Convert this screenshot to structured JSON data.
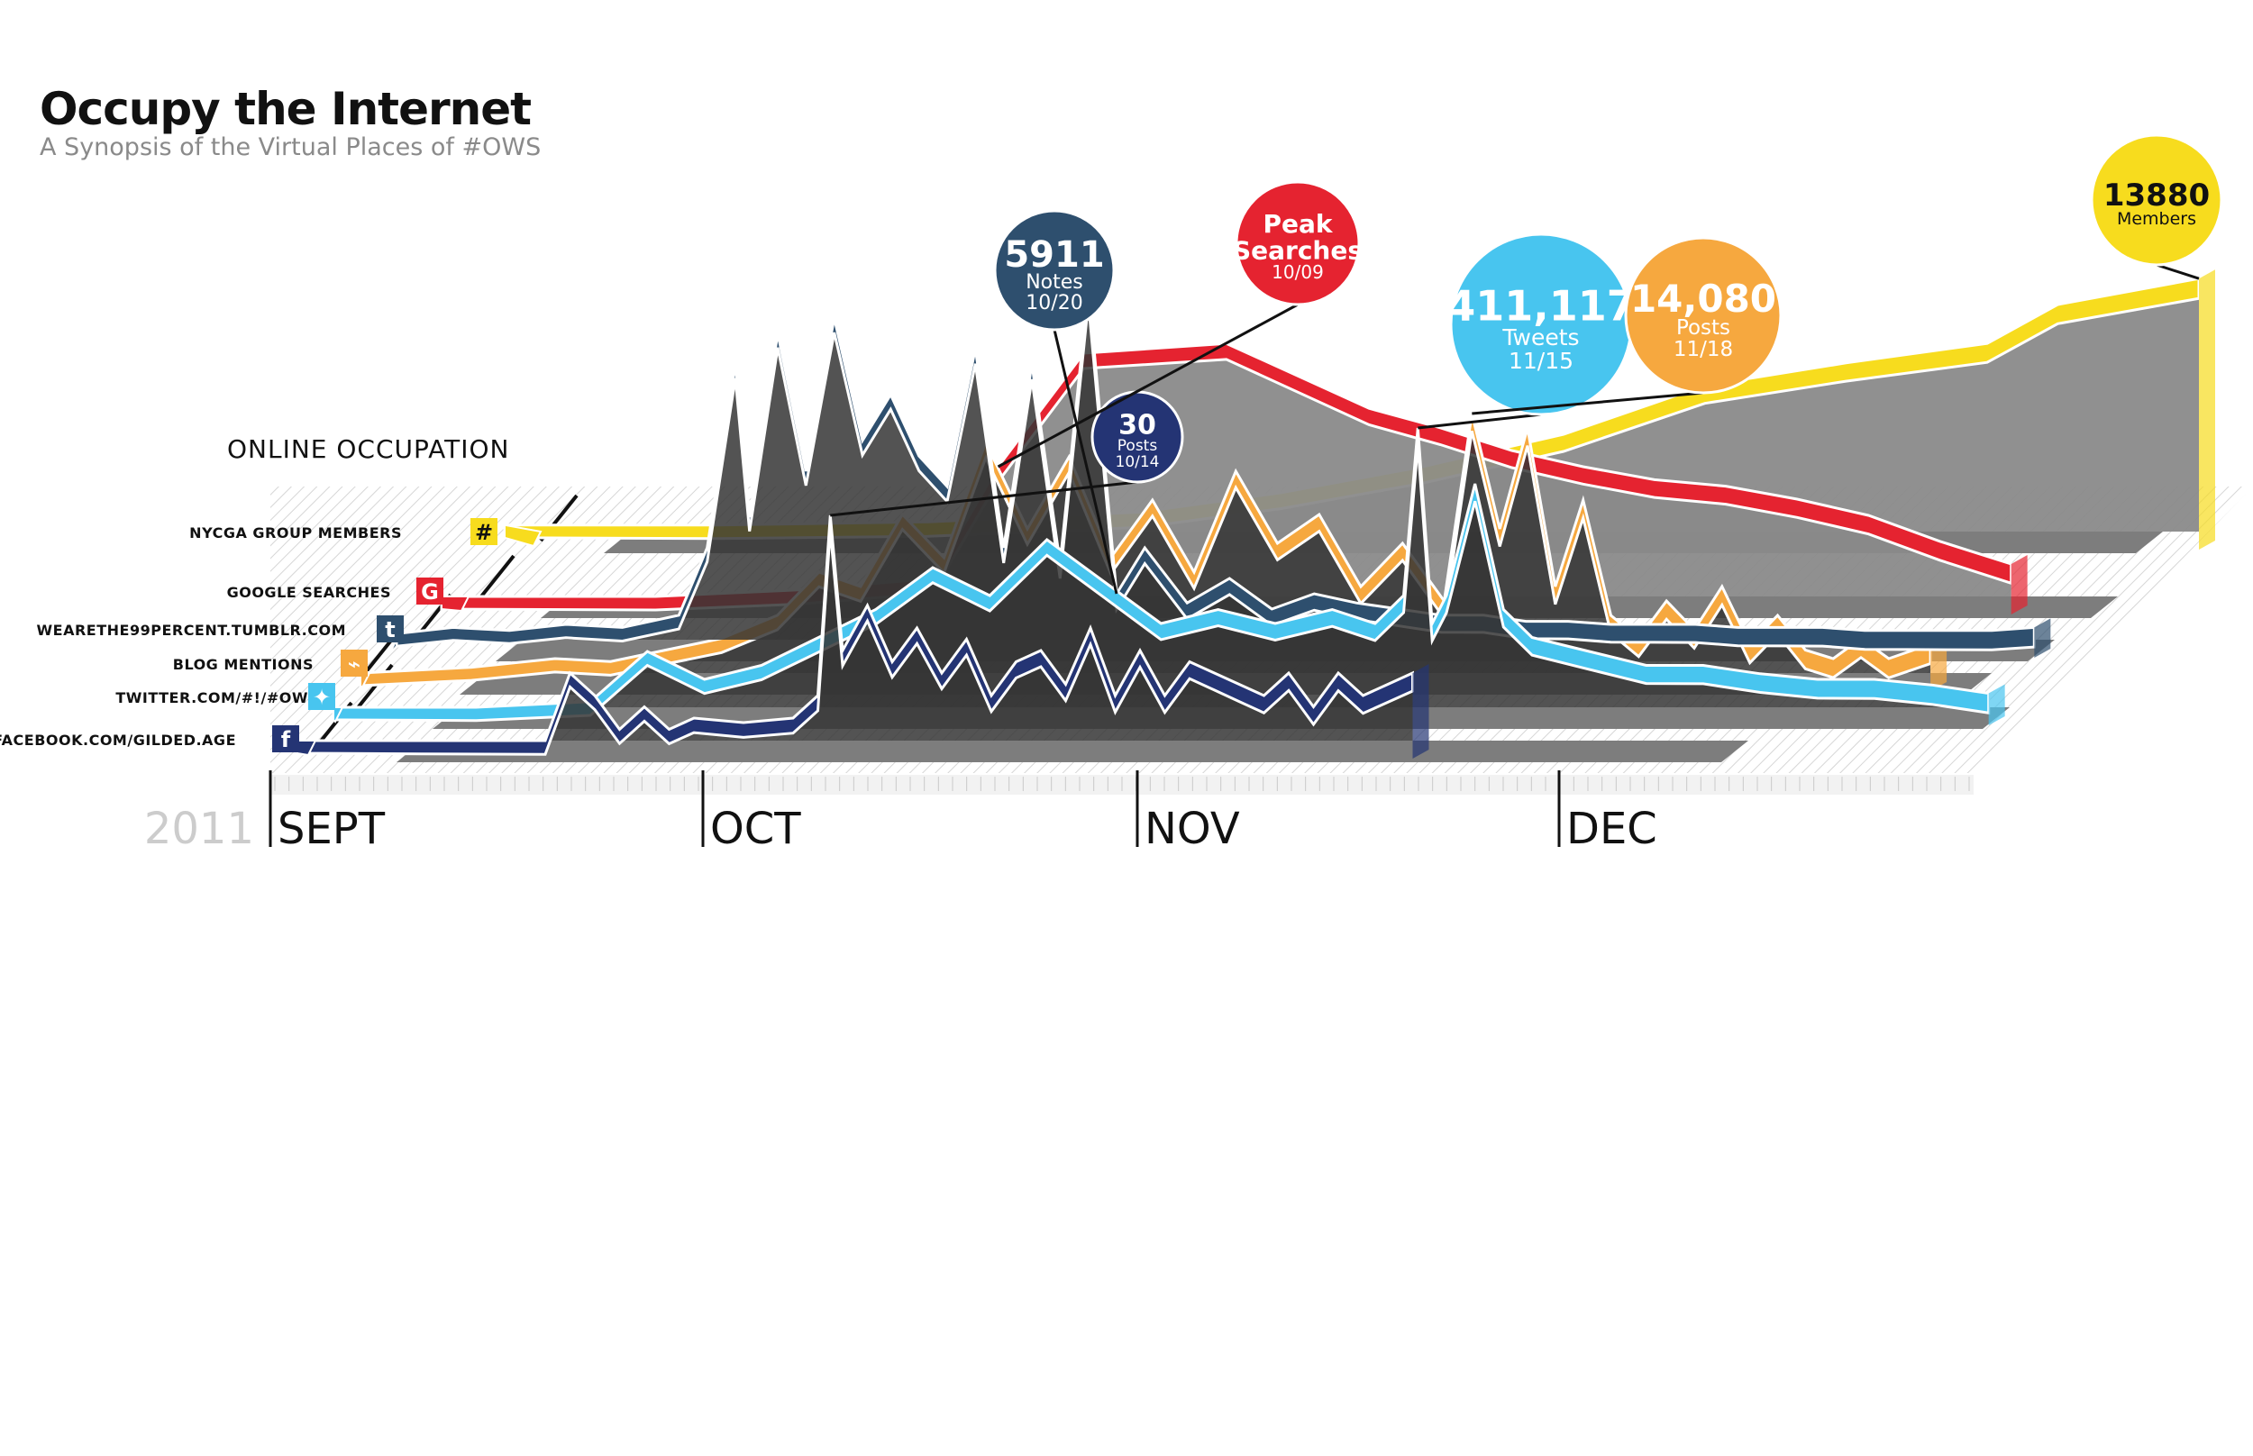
{
  "header": {
    "title": "Occupy the Internet",
    "subtitle": "A Synopsis of the Virtual Places of #OWS"
  },
  "section_label": "ONLINE OCCUPATION",
  "colors": {
    "nycga": "#f7dc1e",
    "google": "#e52330",
    "tumblr": "#2e4f6e",
    "blog": "#f6a83f",
    "twitter": "#48c5ef",
    "facebook": "#243474",
    "floor": "#7d7d7d",
    "shadow": "#2e2e2e"
  },
  "chart_data": {
    "type": "area",
    "title": "Occupy the Internet",
    "subtitle": "A Synopsis of the Virtual Places of #OWS",
    "year": "2011",
    "months": [
      "SEPT",
      "OCT",
      "NOV",
      "DEC"
    ],
    "x_unit": "day index from Sept 1, 2011",
    "xlim": [
      0,
      120
    ],
    "series": [
      {
        "key": "nycga",
        "name": "NYCGA GROUP MEMBERS",
        "icon": "#",
        "x": [
          0,
          15,
          30,
          45,
          55,
          65,
          75,
          85,
          95,
          105,
          110,
          120
        ],
        "values": [
          0.02,
          0.02,
          0.03,
          0.06,
          0.12,
          0.2,
          0.3,
          0.45,
          0.52,
          0.58,
          0.7,
          0.78
        ]
      },
      {
        "key": "google",
        "name": "GOOGLE SEARCHES",
        "icon": "G",
        "x": [
          0,
          15,
          25,
          33,
          35,
          39,
          45,
          55,
          65,
          70,
          75,
          80,
          85,
          90,
          95,
          100,
          105,
          110
        ],
        "values": [
          0.0,
          0.0,
          0.02,
          0.05,
          0.1,
          0.4,
          0.75,
          0.78,
          0.58,
          0.52,
          0.45,
          0.4,
          0.36,
          0.34,
          0.3,
          0.25,
          0.17,
          0.1
        ]
      },
      {
        "key": "tumblr",
        "name": "WEARETHE99PERCENT.TUMBLR.COM",
        "icon": "t",
        "x": [
          0,
          4,
          8,
          12,
          16,
          20,
          22,
          24,
          25,
          27,
          29,
          31,
          33,
          35,
          37,
          39,
          41,
          43,
          45,
          47,
          49,
          51,
          53,
          56,
          59,
          62,
          65,
          68,
          71,
          74,
          77,
          80,
          83,
          86,
          89,
          92,
          95,
          98,
          101,
          104,
          107,
          110,
          113,
          116
        ],
        "values": [
          0.02,
          0.04,
          0.03,
          0.05,
          0.04,
          0.08,
          0.3,
          0.9,
          0.4,
          1.0,
          0.55,
          1.05,
          0.65,
          0.8,
          0.6,
          0.5,
          0.95,
          0.3,
          0.9,
          0.25,
          1.15,
          0.15,
          0.3,
          0.12,
          0.2,
          0.1,
          0.15,
          0.12,
          0.1,
          0.08,
          0.08,
          0.06,
          0.06,
          0.05,
          0.05,
          0.05,
          0.04,
          0.04,
          0.04,
          0.03,
          0.03,
          0.03,
          0.03,
          0.04
        ]
      },
      {
        "key": "blog",
        "name": "BLOG MENTIONS",
        "icon": "rss",
        "x": [
          0,
          8,
          14,
          18,
          22,
          26,
          30,
          33,
          36,
          39,
          42,
          45,
          48,
          51,
          54,
          57,
          60,
          63,
          66,
          69,
          72,
          75,
          78,
          80,
          82,
          84,
          86,
          88,
          90,
          92,
          94,
          96,
          98,
          100,
          102,
          104,
          106,
          108,
          110,
          113
        ],
        "values": [
          0.0,
          0.02,
          0.05,
          0.04,
          0.08,
          0.12,
          0.2,
          0.35,
          0.3,
          0.55,
          0.4,
          0.8,
          0.5,
          0.75,
          0.4,
          0.6,
          0.35,
          0.7,
          0.45,
          0.55,
          0.3,
          0.45,
          0.25,
          0.9,
          0.5,
          0.85,
          0.3,
          0.6,
          0.2,
          0.12,
          0.25,
          0.15,
          0.3,
          0.1,
          0.2,
          0.08,
          0.05,
          0.12,
          0.05,
          0.1
        ]
      },
      {
        "key": "twitter",
        "name": "TWITTER.COM/#!/#OWS",
        "icon": "bird",
        "x": [
          0,
          10,
          18,
          22,
          26,
          30,
          34,
          38,
          42,
          46,
          50,
          54,
          58,
          62,
          66,
          70,
          73,
          75,
          76,
          77,
          78,
          80,
          82,
          84,
          88,
          92,
          96,
          100,
          104,
          108,
          112,
          116
        ],
        "values": [
          0.0,
          0.0,
          0.02,
          0.2,
          0.1,
          0.15,
          0.25,
          0.35,
          0.5,
          0.4,
          0.6,
          0.45,
          0.3,
          0.35,
          0.3,
          0.35,
          0.3,
          0.4,
          1.0,
          0.3,
          0.4,
          0.8,
          0.35,
          0.25,
          0.2,
          0.15,
          0.15,
          0.12,
          0.1,
          0.1,
          0.08,
          0.05
        ]
      },
      {
        "key": "facebook",
        "name": "FACEBOOK.COM/GILDED.AGE",
        "icon": "f",
        "x": [
          0,
          10,
          20,
          22,
          24,
          26,
          28,
          30,
          32,
          36,
          40,
          42,
          43,
          44,
          46,
          48,
          50,
          52,
          54,
          56,
          58,
          60,
          62,
          64,
          66,
          68,
          70,
          72,
          74,
          76,
          78,
          80,
          82,
          84,
          86,
          88,
          90
        ],
        "values": [
          0.0,
          0.0,
          0.0,
          0.3,
          0.2,
          0.05,
          0.15,
          0.05,
          0.1,
          0.08,
          0.1,
          0.2,
          1.0,
          0.4,
          0.6,
          0.35,
          0.5,
          0.3,
          0.45,
          0.2,
          0.35,
          0.4,
          0.25,
          0.5,
          0.2,
          0.4,
          0.2,
          0.35,
          0.3,
          0.25,
          0.2,
          0.3,
          0.15,
          0.3,
          0.2,
          0.25,
          0.3
        ]
      }
    ],
    "annotations": [
      {
        "series": "tumblr",
        "x": 51,
        "lines": [
          "5911",
          "Notes",
          "10/20"
        ]
      },
      {
        "series": "facebook",
        "x": 43,
        "lines": [
          "30",
          "Posts",
          "10/14"
        ]
      },
      {
        "series": "google",
        "x": 39,
        "lines": [
          "Peak",
          "Searches",
          "10/09"
        ]
      },
      {
        "series": "twitter",
        "x": 76,
        "lines": [
          "411,117",
          "Tweets",
          "11/15"
        ]
      },
      {
        "series": "blog",
        "x": 80,
        "lines": [
          "14,080",
          "Posts",
          "11/18"
        ]
      },
      {
        "series": "nycga",
        "x": 120,
        "lines": [
          "13880",
          "Members"
        ]
      }
    ]
  }
}
